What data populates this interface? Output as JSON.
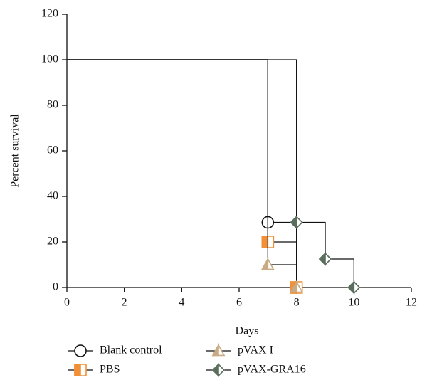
{
  "chart_data": {
    "type": "step",
    "x_label": "Days",
    "y_label": "Percent survival",
    "xlim": [
      0,
      12
    ],
    "xticks": [
      0,
      2,
      4,
      6,
      8,
      10,
      12
    ],
    "ylim": [
      0,
      120
    ],
    "yticks": [
      0,
      20,
      40,
      60,
      80,
      100,
      120
    ],
    "series": [
      {
        "name": "Blank control",
        "color": "#111111",
        "marker": "circle",
        "marker_fill": "none",
        "x": [
          0,
          7,
          8
        ],
        "values": [
          100,
          28.6,
          0
        ]
      },
      {
        "name": "PBS",
        "color": "#f0913a",
        "marker": "square",
        "marker_fill": "half",
        "x": [
          0,
          7,
          8
        ],
        "values": [
          100,
          20,
          0
        ]
      },
      {
        "name": "pVAX I",
        "color": "#c9aa82",
        "marker": "triangle",
        "marker_fill": "half",
        "x": [
          0,
          7,
          8
        ],
        "values": [
          100,
          10,
          0
        ]
      },
      {
        "name": "pVAX-GRA16",
        "color": "#5b6e5d",
        "marker": "diamond",
        "marker_fill": "half",
        "x": [
          0,
          8,
          9,
          10
        ],
        "values": [
          100,
          28.6,
          12.5,
          0
        ]
      }
    ]
  }
}
